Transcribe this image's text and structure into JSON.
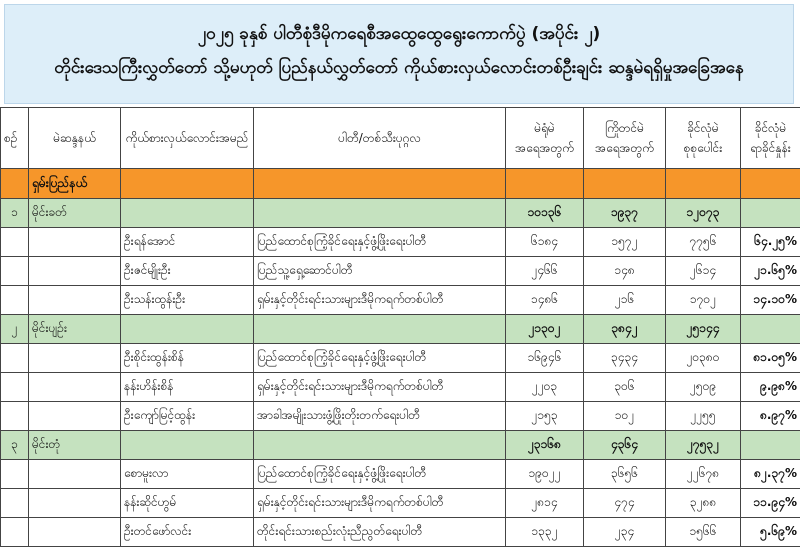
{
  "title": {
    "line1": "၂၀၂၅ ခုနှစ် ပါတီစုံဒီမိုကရေစီအထွေထွေရွေးကောက်ပွဲ (အပိုင်း ၂)",
    "line2": "တိုင်းဒေသကြီးလွှတ်တော် သို့မဟုတ် ပြည်နယ်လွှတ်တော် ကိုယ်စားလှယ်လောင်းတစ်ဦးချင်း ဆန္ဒမဲရရှိမှုအခြေအနေ"
  },
  "headers": [
    "စဉ်",
    "မဲဆန္ဒနယ်",
    "ကိုယ်စားလှယ်လောင်းအမည်",
    "ပါတီ/တစ်သီးပုဂ္ဂလ",
    "မဲရုံမဲ အရေအတွက်",
    "ကြိုတင်မဲ အရေအတွက်",
    "ခိုင်လုံမဲ စုစုပေါင်း",
    "ခိုင်လုံမဲ ရာခိုင်နှုန်း"
  ],
  "colors": {
    "title_bg": "#ddeef9",
    "state_row": "#f6962a",
    "constituency_row": "#c5e2bf"
  },
  "state": "ရှမ်းပြည်နယ်",
  "constituencies": [
    {
      "no": "၁",
      "name": "မိုင်းခတ်",
      "booth": "၁၀၁၃၆",
      "advance": "၁၉၃၇",
      "total": "၁၂၀၇၃",
      "candidates": [
        {
          "name": "ဦးရန်အောင်",
          "party": "ပြည်ထောင်စုကြံ့ခိုင်ရေးနှင့်ဖွံ့ဖြိုးရေးပါတီ",
          "booth": "၆၁၈၄",
          "advance": "၁၅၇၂",
          "total": "၇၇၅၆",
          "pct": "၆၄.၂၅%"
        },
        {
          "name": "ဦးဇင်မျိုးဦး",
          "party": "ပြည်သူ့ရှေ့ဆောင်ပါတီ",
          "booth": "၂၄၆၆",
          "advance": "၁၄၈",
          "total": "၂၆၁၄",
          "pct": "၂၁.၆၅%"
        },
        {
          "name": "ဦးသန်းထွန်းဦး",
          "party": "ရှမ်းနှင့်တိုင်းရင်းသားများဒီမိုကရက်တစ်ပါတီ",
          "booth": "၁၄၈၆",
          "advance": "၂၁၆",
          "total": "၁၇၀၂",
          "pct": "၁၄.၁၀%"
        }
      ]
    },
    {
      "no": "၂",
      "name": "မိုင်းပျဉ်း",
      "booth": "၂၁၃၀၂",
      "advance": "၃၈၄၂",
      "total": "၂၅၁၄၄",
      "candidates": [
        {
          "name": "ဦးစိုင်းထွန်းစိန်",
          "party": "ပြည်ထောင်စုကြံ့ခိုင်ရေးနှင့်ဖွံ့ဖြိုးရေးပါတီ",
          "booth": "၁၆၉၄၆",
          "advance": "၃၄၃၄",
          "total": "၂၀၃၈၀",
          "pct": "၈၁.၀၅%"
        },
        {
          "name": "နန်းဟိန်းစိန်",
          "party": "ရှမ်းနှင့်တိုင်းရင်းသားများဒီမိုကရက်တစ်ပါတီ",
          "booth": "၂၂၀၃",
          "advance": "၃၀၆",
          "total": "၂၅၀၉",
          "pct": "၉.၉၈%"
        },
        {
          "name": "ဦးကျော်မြင့်ထွန်း",
          "party": "အာခါအမျိုးသားဖွံ့ဖြိုးတိုးတက်ရေးပါတီ",
          "booth": "၂၁၅၃",
          "advance": "၁၀၂",
          "total": "၂၂၅၅",
          "pct": "၈.၉၇%"
        }
      ]
    },
    {
      "no": "၃",
      "name": "မိုင်းတုံ",
      "booth": "၂၃၁၆၈",
      "advance": "၄၃၆၄",
      "total": "၂၇၅၃၂",
      "candidates": [
        {
          "name": "စောမူးလာ",
          "party": "ပြည်ထောင်စုကြံ့ခိုင်ရေးနှင့်ဖွံ့ဖြိုးရေးပါတီ",
          "booth": "၁၉၀၂၂",
          "advance": "၃၆၅၆",
          "total": "၂၂၆၇၈",
          "pct": "၈၂.၃၇%"
        },
        {
          "name": "နန်းဆိုင်ဟွမ်",
          "party": "ရှမ်းနှင့်တိုင်းရင်းသားများဒီမိုကရက်တစ်ပါတီ",
          "booth": "၂၈၁၄",
          "advance": "၄၇၄",
          "total": "၃၂၈၈",
          "pct": "၁၁.၉၄%"
        },
        {
          "name": "ဦးတင်ဖော်လင်း",
          "party": "တိုင်းရင်းသားစည်းလုံးညီညွတ်ရေးပါတီ",
          "booth": "၁၃၃၂",
          "advance": "၂၃၄",
          "total": "၁၅၆၆",
          "pct": "၅.၆၉%"
        }
      ]
    }
  ]
}
